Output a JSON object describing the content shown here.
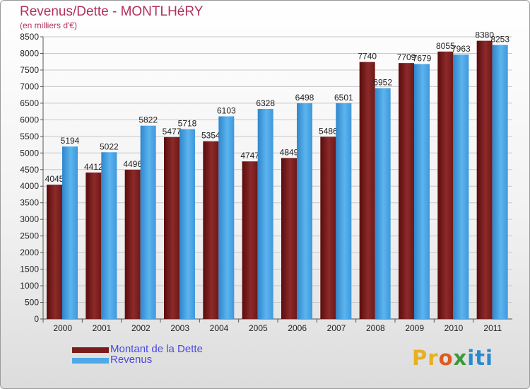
{
  "chart_data": {
    "type": "bar",
    "title": "Revenus/Dette - MONTLHéRY",
    "subtitle": "(en milliers d'€)",
    "categories": [
      "2000",
      "2001",
      "2002",
      "2003",
      "2004",
      "2005",
      "2006",
      "2007",
      "2008",
      "2009",
      "2010",
      "2011"
    ],
    "series": [
      {
        "name": "Montant de la Dette",
        "color": "#7a1c1c",
        "values": [
          4045,
          4412,
          4496,
          5477,
          5354,
          4747,
          4849,
          5486,
          7740,
          7709,
          8055,
          8380
        ]
      },
      {
        "name": "Revenus",
        "color": "#4fa8e8",
        "values": [
          5194,
          5022,
          5822,
          5718,
          6103,
          6328,
          6498,
          6501,
          6952,
          7679,
          7963,
          8253
        ]
      }
    ],
    "ylim": [
      0,
      8500
    ],
    "yticks": [
      0,
      500,
      1000,
      1500,
      2000,
      2500,
      3000,
      3500,
      4000,
      4500,
      5000,
      5500,
      6000,
      6500,
      7000,
      7500,
      8000,
      8500
    ],
    "grid": true,
    "legend": "bottom-left"
  },
  "logo": {
    "text": "Proxiti"
  }
}
